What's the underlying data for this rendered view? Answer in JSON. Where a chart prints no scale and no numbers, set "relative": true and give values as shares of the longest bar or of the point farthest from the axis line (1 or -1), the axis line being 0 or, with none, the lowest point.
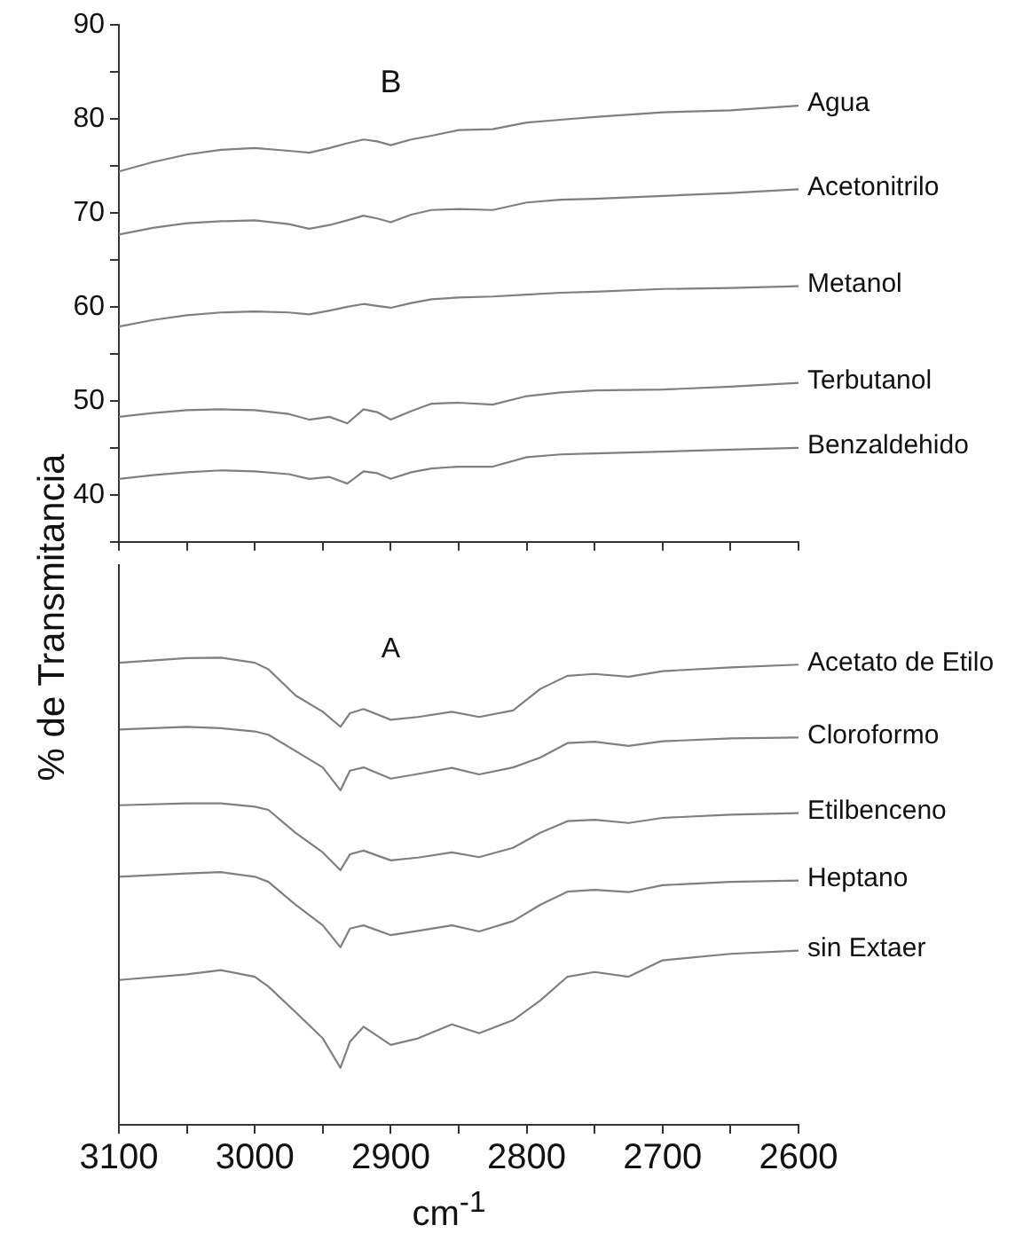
{
  "chart_data": [
    {
      "type": "line",
      "title": "B",
      "ylabel": "% de Transmitancia",
      "xlim": [
        3100,
        2600
      ],
      "ylim": [
        35,
        90
      ],
      "xticks": [
        {
          "value": 3100,
          "label": null
        },
        {
          "value": 3050,
          "label": null
        },
        {
          "value": 3000,
          "label": null
        },
        {
          "value": 2950,
          "label": null
        },
        {
          "value": 2900,
          "label": null
        },
        {
          "value": 2850,
          "label": null
        },
        {
          "value": 2800,
          "label": null
        },
        {
          "value": 2750,
          "label": null
        },
        {
          "value": 2700,
          "label": null
        },
        {
          "value": 2650,
          "label": null
        },
        {
          "value": 2600,
          "label": null
        }
      ],
      "yticks": [
        {
          "value": 35,
          "label": null
        },
        40,
        {
          "value": 45,
          "label": null
        },
        50,
        {
          "value": 55,
          "label": null
        },
        60,
        {
          "value": 65,
          "label": null
        },
        70,
        {
          "value": 75,
          "label": null
        },
        80,
        {
          "value": 85,
          "label": null
        },
        90
      ],
      "tick_labels": "y",
      "grid": false,
      "legend": false,
      "marker": "none",
      "line_style": "solid",
      "x": [
        3100,
        3075,
        3050,
        3025,
        3000,
        2975,
        2960,
        2945,
        2932,
        2920,
        2910,
        2900,
        2885,
        2870,
        2850,
        2825,
        2800,
        2775,
        2750,
        2700,
        2650,
        2600
      ],
      "series": [
        {
          "name": "Agua",
          "color": "#7f7f7f",
          "values": [
            74.4,
            75.4,
            76.2,
            76.7,
            76.9,
            76.6,
            76.4,
            76.9,
            77.4,
            77.8,
            77.6,
            77.2,
            77.8,
            78.2,
            78.8,
            78.9,
            79.6,
            79.9,
            80.2,
            80.7,
            80.9,
            81.4
          ]
        },
        {
          "name": "Acetonitrilo",
          "color": "#7f7f7f",
          "values": [
            67.7,
            68.4,
            68.9,
            69.1,
            69.2,
            68.8,
            68.3,
            68.7,
            69.2,
            69.7,
            69.4,
            69.0,
            69.8,
            70.3,
            70.4,
            70.3,
            71.1,
            71.4,
            71.5,
            71.8,
            72.1,
            72.5
          ]
        },
        {
          "name": "Metanol",
          "color": "#7f7f7f",
          "values": [
            57.9,
            58.6,
            59.1,
            59.4,
            59.5,
            59.4,
            59.2,
            59.6,
            60.0,
            60.3,
            60.1,
            59.9,
            60.4,
            60.8,
            61.0,
            61.1,
            61.3,
            61.5,
            61.6,
            61.9,
            62.0,
            62.2
          ]
        },
        {
          "name": "Terbutanol",
          "color": "#7f7f7f",
          "values": [
            48.3,
            48.7,
            49.0,
            49.1,
            49.0,
            48.6,
            48.0,
            48.3,
            47.6,
            49.1,
            48.8,
            48.0,
            48.9,
            49.7,
            49.8,
            49.6,
            50.5,
            50.9,
            51.1,
            51.2,
            51.5,
            51.9
          ]
        },
        {
          "name": "Benzaldehido",
          "color": "#7f7f7f",
          "values": [
            41.7,
            42.1,
            42.4,
            42.6,
            42.5,
            42.2,
            41.7,
            41.9,
            41.2,
            42.5,
            42.3,
            41.7,
            42.4,
            42.8,
            43.0,
            43.0,
            44.0,
            44.3,
            44.4,
            44.6,
            44.8,
            45.0
          ]
        }
      ]
    },
    {
      "type": "line",
      "title": "A",
      "xlabel": "cm$^{-1}$",
      "relative": true,
      "xlim": [
        3100,
        2600
      ],
      "xticks": [
        3100,
        {
          "value": 3050,
          "label": null
        },
        3000,
        {
          "value": 2950,
          "label": null
        },
        2900,
        {
          "value": 2850,
          "label": null
        },
        2800,
        {
          "value": 2750,
          "label": null
        },
        2700,
        {
          "value": 2650,
          "label": null
        },
        2600
      ],
      "grid": false,
      "legend": false,
      "marker": "none",
      "line_style": "solid",
      "x": [
        3100,
        3050,
        3025,
        3000,
        2990,
        2970,
        2950,
        2937,
        2930,
        2920,
        2900,
        2880,
        2855,
        2835,
        2810,
        2790,
        2770,
        2750,
        2725,
        2700,
        2650,
        2600
      ],
      "series": [
        {
          "name": "Acetato de Etilo",
          "color": "#7f7f7f",
          "values": [
            0.989,
            0.999,
            1.0,
            0.989,
            0.975,
            0.919,
            0.884,
            0.852,
            0.881,
            0.89,
            0.867,
            0.873,
            0.884,
            0.873,
            0.887,
            0.933,
            0.961,
            0.965,
            0.959,
            0.971,
            0.979,
            0.985
          ]
        },
        {
          "name": "Cloroformo",
          "color": "#7f7f7f",
          "values": [
            0.846,
            0.852,
            0.849,
            0.842,
            0.835,
            0.8,
            0.765,
            0.716,
            0.758,
            0.765,
            0.741,
            0.751,
            0.764,
            0.75,
            0.765,
            0.786,
            0.817,
            0.82,
            0.811,
            0.821,
            0.827,
            0.829
          ]
        },
        {
          "name": "Etilbenceno",
          "color": "#7f7f7f",
          "values": [
            0.684,
            0.688,
            0.688,
            0.681,
            0.674,
            0.625,
            0.583,
            0.545,
            0.579,
            0.587,
            0.566,
            0.572,
            0.583,
            0.573,
            0.593,
            0.625,
            0.65,
            0.653,
            0.646,
            0.657,
            0.664,
            0.667
          ]
        },
        {
          "name": "Heptano",
          "color": "#7f7f7f",
          "values": [
            0.531,
            0.538,
            0.541,
            0.531,
            0.52,
            0.471,
            0.427,
            0.38,
            0.42,
            0.427,
            0.406,
            0.415,
            0.427,
            0.414,
            0.436,
            0.471,
            0.499,
            0.503,
            0.498,
            0.513,
            0.52,
            0.523
          ]
        },
        {
          "name": "sin Extaer",
          "color": "#7f7f7f",
          "values": [
            0.31,
            0.322,
            0.331,
            0.317,
            0.296,
            0.241,
            0.185,
            0.122,
            0.178,
            0.21,
            0.171,
            0.185,
            0.215,
            0.196,
            0.224,
            0.266,
            0.317,
            0.327,
            0.317,
            0.352,
            0.366,
            0.373
          ]
        }
      ]
    }
  ]
}
